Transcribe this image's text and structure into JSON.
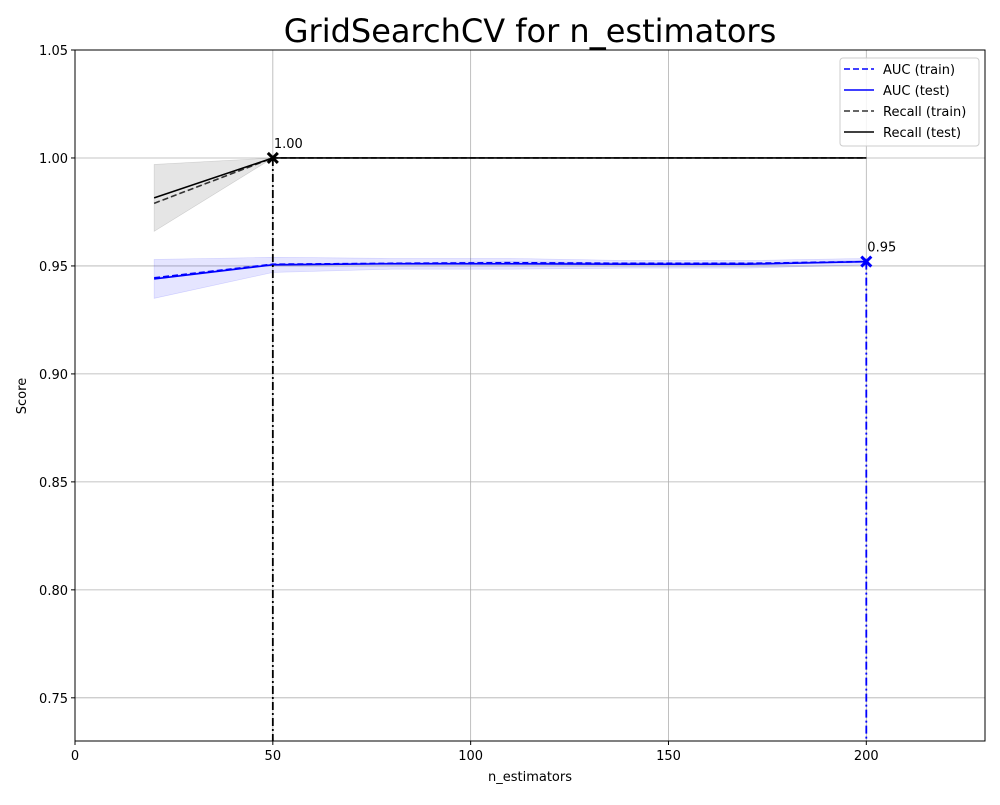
{
  "chart_data": {
    "type": "line",
    "title": "GridSearchCV for n_estimators",
    "xlabel": "n_estimators",
    "ylabel": "Score",
    "xlim": [
      0,
      230
    ],
    "ylim": [
      0.73,
      1.05
    ],
    "xticks": [
      0,
      50,
      100,
      150,
      200
    ],
    "xtick_labels": [
      "0",
      "50",
      "100",
      "150",
      "200"
    ],
    "yticks": [
      0.75,
      0.8,
      0.85,
      0.9,
      0.95,
      1.0,
      1.05
    ],
    "ytick_labels": [
      "0.75",
      "0.80",
      "0.85",
      "0.90",
      "0.95",
      "1.00",
      "1.05"
    ],
    "grid": true,
    "legend_position": "top-right",
    "x": [
      20,
      50,
      80,
      110,
      140,
      170,
      200
    ],
    "series": [
      {
        "name": "AUC (train)",
        "color": "#0000ff",
        "style": "dashed",
        "values": [
          0.9445,
          0.9508,
          0.9512,
          0.9515,
          0.9512,
          0.9512,
          0.952
        ],
        "band_lower": [
          0.9445,
          0.9505,
          0.9508,
          0.951,
          0.951,
          0.951,
          0.9515
        ],
        "band_upper": [
          0.9445,
          0.951,
          0.9515,
          0.952,
          0.9515,
          0.9515,
          0.9525
        ]
      },
      {
        "name": "AUC (test)",
        "color": "#0000ff",
        "style": "solid",
        "values": [
          0.944,
          0.9505,
          0.951,
          0.951,
          0.9508,
          0.9508,
          0.952
        ],
        "band_lower": [
          0.935,
          0.947,
          0.9485,
          0.9485,
          0.949,
          0.949,
          0.9505
        ],
        "band_upper": [
          0.953,
          0.954,
          0.9535,
          0.9535,
          0.9525,
          0.9525,
          0.9535
        ]
      },
      {
        "name": "Recall (train)",
        "color": "#333333",
        "style": "dashed",
        "values": [
          0.979,
          1.0,
          1.0,
          1.0,
          1.0,
          1.0,
          1.0
        ],
        "band_lower": [
          0.979,
          1.0,
          1.0,
          1.0,
          1.0,
          1.0,
          1.0
        ],
        "band_upper": [
          0.979,
          1.0,
          1.0,
          1.0,
          1.0,
          1.0,
          1.0
        ]
      },
      {
        "name": "Recall (test)",
        "color": "#000000",
        "style": "solid",
        "values": [
          0.9815,
          1.0,
          1.0,
          1.0,
          1.0,
          1.0,
          1.0
        ],
        "band_lower": [
          0.966,
          1.0,
          1.0,
          1.0,
          1.0,
          1.0,
          1.0
        ],
        "band_upper": [
          0.997,
          1.0,
          1.0,
          1.0,
          1.0,
          1.0,
          1.0
        ]
      }
    ],
    "best_points": [
      {
        "series": "Recall (test)",
        "x": 50,
        "y": 1.0,
        "label": "1.00",
        "color": "#000000"
      },
      {
        "series": "AUC (test)",
        "x": 200,
        "y": 0.952,
        "label": "0.95",
        "color": "#0000ff"
      }
    ]
  }
}
